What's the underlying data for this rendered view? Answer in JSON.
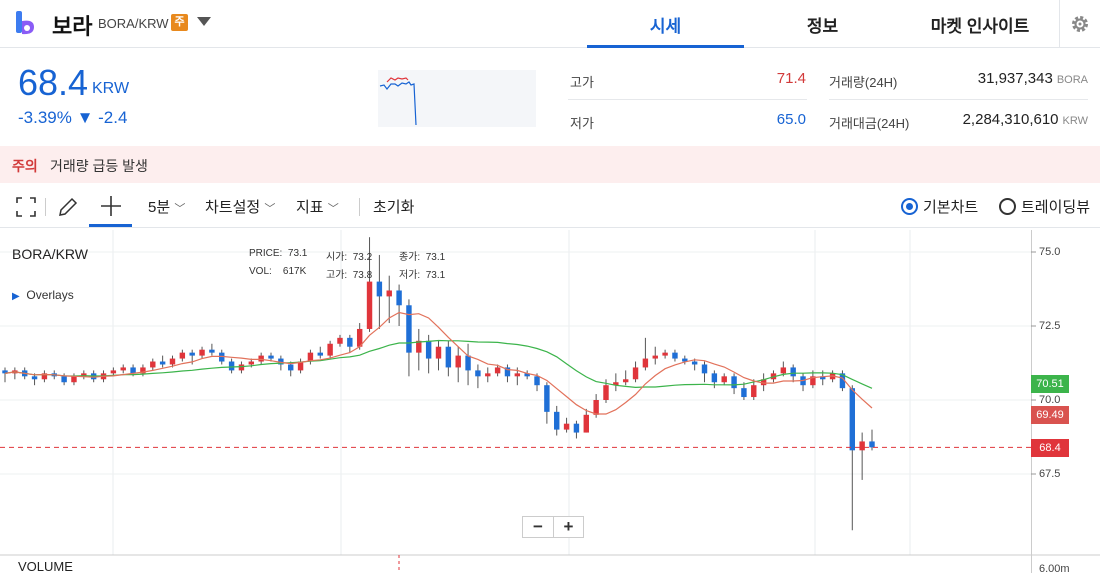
{
  "header": {
    "coin_name": "보라",
    "coin_symbol": "BORA/KRW",
    "caution_badge": "주",
    "tabs": [
      {
        "label": "시세",
        "active": true
      },
      {
        "label": "정보",
        "active": false
      },
      {
        "label": "마켓 인사이트",
        "active": false
      }
    ],
    "accent_color": "#1763d3"
  },
  "price": {
    "current": "68.4",
    "unit": "KRW",
    "change": "-3.39% ▼ -2.4"
  },
  "stats": {
    "high_label": "고가",
    "high_value": "71.4",
    "low_label": "저가",
    "low_value": "65.0",
    "volume_label": "거래량(24H)",
    "volume_value": "31,937,343",
    "volume_unit": "BORA",
    "amount_label": "거래대금(24H)",
    "amount_value": "2,284,310,610",
    "amount_unit": "KRW"
  },
  "warning": {
    "label": "주의",
    "text": "거래량 급등 발생"
  },
  "toolbar": {
    "interval": "5분",
    "chart_settings": "차트설정",
    "indicators": "지표",
    "reset": "초기화",
    "basic_chart": "기본차트",
    "trading_view": "트레이딩뷰"
  },
  "chart": {
    "pair": "BORA/KRW",
    "overlays": "Overlays",
    "ohlc": {
      "price_label": "PRICE:",
      "price": "73.1",
      "open_label": "시가:",
      "open": "73.2",
      "close_label": "종가:",
      "close": "73.1",
      "vol_label": "VOL:",
      "vol": "617K",
      "high_label": "고가:",
      "high": "73.8",
      "low_label": "저가:",
      "low": "73.1"
    },
    "y_ticks": [
      "75.0",
      "72.5",
      "70.0",
      "67.5",
      "6.00m"
    ],
    "tags": {
      "ma_long": "70.51",
      "ma_short": "69.49",
      "last": "68.4"
    },
    "volume_label": "VOLUME",
    "zoom_minus": "−",
    "zoom_plus": "+"
  },
  "chart_data": {
    "type": "candlestick",
    "y_axis_ticks": [
      75.0,
      72.5,
      70.0,
      67.5
    ],
    "ylim": [
      65.5,
      75.5
    ],
    "last_price": 68.4,
    "ma_long_last": 70.51,
    "ma_short_last": 69.49,
    "up_color": "#e0353b",
    "down_color": "#1f6fd6",
    "ma_long_color": "#3cb44b",
    "ma_short_color": "#e2725b",
    "candles": [
      [
        71.0,
        70.9,
        71.1,
        70.6
      ],
      [
        70.9,
        71.0,
        71.1,
        70.7
      ],
      [
        71.0,
        70.8,
        71.1,
        70.7
      ],
      [
        70.8,
        70.7,
        70.9,
        70.5
      ],
      [
        70.7,
        70.9,
        71.0,
        70.6
      ],
      [
        70.9,
        70.8,
        71.0,
        70.7
      ],
      [
        70.8,
        70.6,
        70.9,
        70.5
      ],
      [
        70.6,
        70.8,
        70.9,
        70.5
      ],
      [
        70.8,
        70.9,
        71.0,
        70.7
      ],
      [
        70.9,
        70.7,
        71.0,
        70.6
      ],
      [
        70.7,
        70.9,
        71.0,
        70.6
      ],
      [
        70.9,
        71.0,
        71.1,
        70.8
      ],
      [
        71.0,
        71.1,
        71.2,
        70.9
      ],
      [
        71.1,
        70.9,
        71.2,
        70.8
      ],
      [
        70.9,
        71.1,
        71.2,
        70.8
      ],
      [
        71.1,
        71.3,
        71.4,
        71.0
      ],
      [
        71.3,
        71.2,
        71.5,
        71.1
      ],
      [
        71.2,
        71.4,
        71.5,
        71.1
      ],
      [
        71.4,
        71.6,
        71.7,
        71.3
      ],
      [
        71.6,
        71.5,
        71.7,
        71.2
      ],
      [
        71.5,
        71.7,
        71.8,
        71.4
      ],
      [
        71.7,
        71.6,
        71.9,
        71.5
      ],
      [
        71.6,
        71.3,
        71.7,
        71.2
      ],
      [
        71.3,
        71.0,
        71.4,
        70.9
      ],
      [
        71.0,
        71.2,
        71.3,
        70.9
      ],
      [
        71.2,
        71.3,
        71.4,
        71.1
      ],
      [
        71.3,
        71.5,
        71.6,
        71.2
      ],
      [
        71.5,
        71.4,
        71.6,
        71.3
      ],
      [
        71.4,
        71.2,
        71.5,
        71.0
      ],
      [
        71.2,
        71.0,
        71.3,
        70.8
      ],
      [
        71.0,
        71.3,
        71.4,
        70.9
      ],
      [
        71.3,
        71.6,
        71.7,
        71.2
      ],
      [
        71.6,
        71.5,
        71.8,
        71.4
      ],
      [
        71.5,
        71.9,
        72.0,
        71.4
      ],
      [
        71.9,
        72.1,
        72.2,
        71.8
      ],
      [
        72.1,
        71.8,
        72.2,
        71.6
      ],
      [
        71.8,
        72.4,
        72.6,
        71.7
      ],
      [
        72.4,
        74.0,
        75.5,
        72.3
      ],
      [
        74.0,
        73.5,
        74.9,
        72.4
      ],
      [
        73.5,
        73.7,
        74.2,
        72.6
      ],
      [
        73.7,
        73.2,
        73.9,
        72.5
      ],
      [
        73.2,
        71.6,
        73.4,
        70.8
      ],
      [
        71.6,
        72.0,
        72.4,
        71.0
      ],
      [
        72.0,
        71.4,
        72.2,
        70.9
      ],
      [
        71.4,
        71.8,
        72.0,
        71.0
      ],
      [
        71.8,
        71.1,
        72.0,
        70.8
      ],
      [
        71.1,
        71.5,
        71.8,
        70.6
      ],
      [
        71.5,
        71.0,
        71.9,
        70.5
      ],
      [
        71.0,
        70.8,
        71.2,
        70.4
      ],
      [
        70.8,
        70.9,
        71.1,
        70.6
      ],
      [
        70.9,
        71.1,
        71.2,
        70.8
      ],
      [
        71.1,
        70.8,
        71.2,
        70.6
      ],
      [
        70.8,
        70.9,
        71.1,
        70.5
      ],
      [
        70.9,
        70.8,
        71.0,
        70.7
      ],
      [
        70.8,
        70.5,
        70.9,
        70.3
      ],
      [
        70.5,
        69.6,
        70.6,
        69.2
      ],
      [
        69.6,
        69.0,
        69.8,
        68.8
      ],
      [
        69.0,
        69.2,
        69.4,
        68.9
      ],
      [
        69.2,
        68.9,
        69.3,
        68.7
      ],
      [
        68.9,
        69.5,
        69.7,
        68.9
      ],
      [
        69.5,
        70.0,
        70.2,
        69.4
      ],
      [
        70.0,
        70.5,
        70.7,
        69.9
      ],
      [
        70.5,
        70.6,
        70.9,
        70.3
      ],
      [
        70.6,
        70.7,
        71.0,
        70.5
      ],
      [
        70.7,
        71.1,
        71.3,
        70.6
      ],
      [
        71.1,
        71.4,
        72.1,
        71.0
      ],
      [
        71.4,
        71.5,
        71.8,
        71.2
      ],
      [
        71.5,
        71.6,
        71.7,
        71.4
      ],
      [
        71.6,
        71.4,
        71.7,
        71.3
      ],
      [
        71.4,
        71.3,
        71.5,
        71.2
      ],
      [
        71.3,
        71.2,
        71.4,
        71.0
      ],
      [
        71.2,
        70.9,
        71.3,
        70.6
      ],
      [
        70.9,
        70.6,
        71.0,
        70.4
      ],
      [
        70.6,
        70.8,
        70.9,
        70.5
      ],
      [
        70.8,
        70.4,
        70.9,
        70.2
      ],
      [
        70.4,
        70.1,
        70.6,
        70.0
      ],
      [
        70.1,
        70.5,
        70.7,
        70.0
      ],
      [
        70.5,
        70.7,
        70.9,
        70.3
      ],
      [
        70.7,
        70.9,
        71.0,
        70.6
      ],
      [
        70.9,
        71.1,
        71.3,
        70.8
      ],
      [
        71.1,
        70.8,
        71.2,
        70.6
      ],
      [
        70.8,
        70.5,
        70.9,
        70.3
      ],
      [
        70.5,
        70.8,
        71.0,
        70.4
      ],
      [
        70.8,
        70.7,
        71.0,
        70.5
      ],
      [
        70.7,
        70.9,
        71.0,
        70.6
      ],
      [
        70.9,
        70.4,
        71.0,
        70.3
      ],
      [
        70.4,
        68.3,
        70.5,
        65.6
      ],
      [
        68.3,
        68.6,
        68.9,
        67.3
      ],
      [
        68.6,
        68.4,
        69.0,
        68.3
      ]
    ]
  }
}
